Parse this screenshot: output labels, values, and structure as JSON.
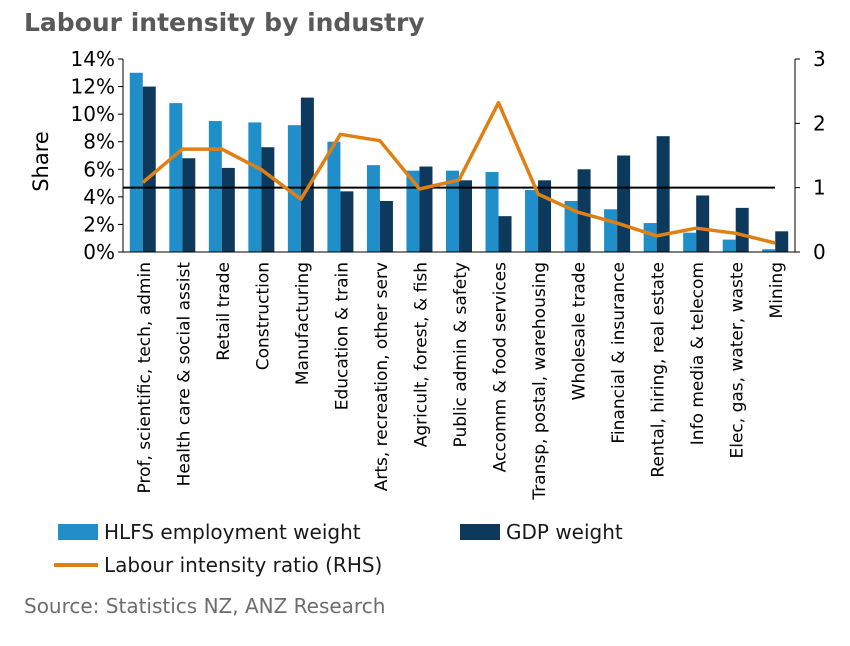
{
  "title": "Labour intensity by industry",
  "source": "Source: Statistics NZ, ANZ Research",
  "legend": {
    "hlfs": "HLFS employment weight",
    "gdp": "GDP weight",
    "ratio": "Labour intensity ratio (RHS)"
  },
  "colors": {
    "hlfs": "#1f8ec9",
    "gdp": "#0d3a5c",
    "ratio": "#e07f14",
    "refline": "#000000"
  },
  "chart_data": {
    "type": "bar",
    "title": "Labour intensity by industry",
    "ylabel": "Share",
    "y2label": "",
    "ylim": [
      0,
      14
    ],
    "y2lim": [
      0,
      3
    ],
    "yticks": [
      "0%",
      "2%",
      "4%",
      "6%",
      "8%",
      "10%",
      "12%",
      "14%"
    ],
    "y2ticks": [
      "0",
      "1",
      "2",
      "3"
    ],
    "reference_line_rhs": 1,
    "categories": [
      "Prof, scientific, tech, admin",
      "Health care & social assist",
      "Retail trade",
      "Construction",
      "Manufacturing",
      "Education & train",
      "Arts, recreation, other serv",
      "Agricult, forest, & fish",
      "Public admin & safety",
      "Accomm & food services",
      "Transp, postal, warehousing",
      "Wholesale trade",
      "Financial & insurance",
      "Rental, hiring, real estate",
      "Info media & telecom",
      "Elec, gas, water, waste",
      "Mining"
    ],
    "series": [
      {
        "name": "HLFS employment weight",
        "axis": "left",
        "values": [
          13.0,
          10.8,
          9.5,
          9.4,
          9.2,
          8.0,
          6.3,
          5.9,
          5.9,
          5.8,
          4.5,
          3.7,
          3.1,
          2.1,
          1.4,
          0.9,
          0.2
        ]
      },
      {
        "name": "GDP weight",
        "axis": "left",
        "values": [
          12.0,
          6.8,
          6.1,
          7.6,
          11.2,
          4.4,
          3.7,
          6.2,
          5.2,
          2.6,
          5.2,
          6.0,
          7.0,
          8.4,
          4.1,
          3.2,
          1.5
        ]
      },
      {
        "name": "Labour intensity ratio (RHS)",
        "axis": "right",
        "type": "line",
        "values": [
          1.08,
          1.6,
          1.6,
          1.28,
          0.82,
          1.83,
          1.73,
          0.98,
          1.12,
          2.32,
          0.9,
          0.62,
          0.45,
          0.25,
          0.37,
          0.29,
          0.14
        ]
      }
    ],
    "grid": false,
    "legend_position": "bottom"
  }
}
